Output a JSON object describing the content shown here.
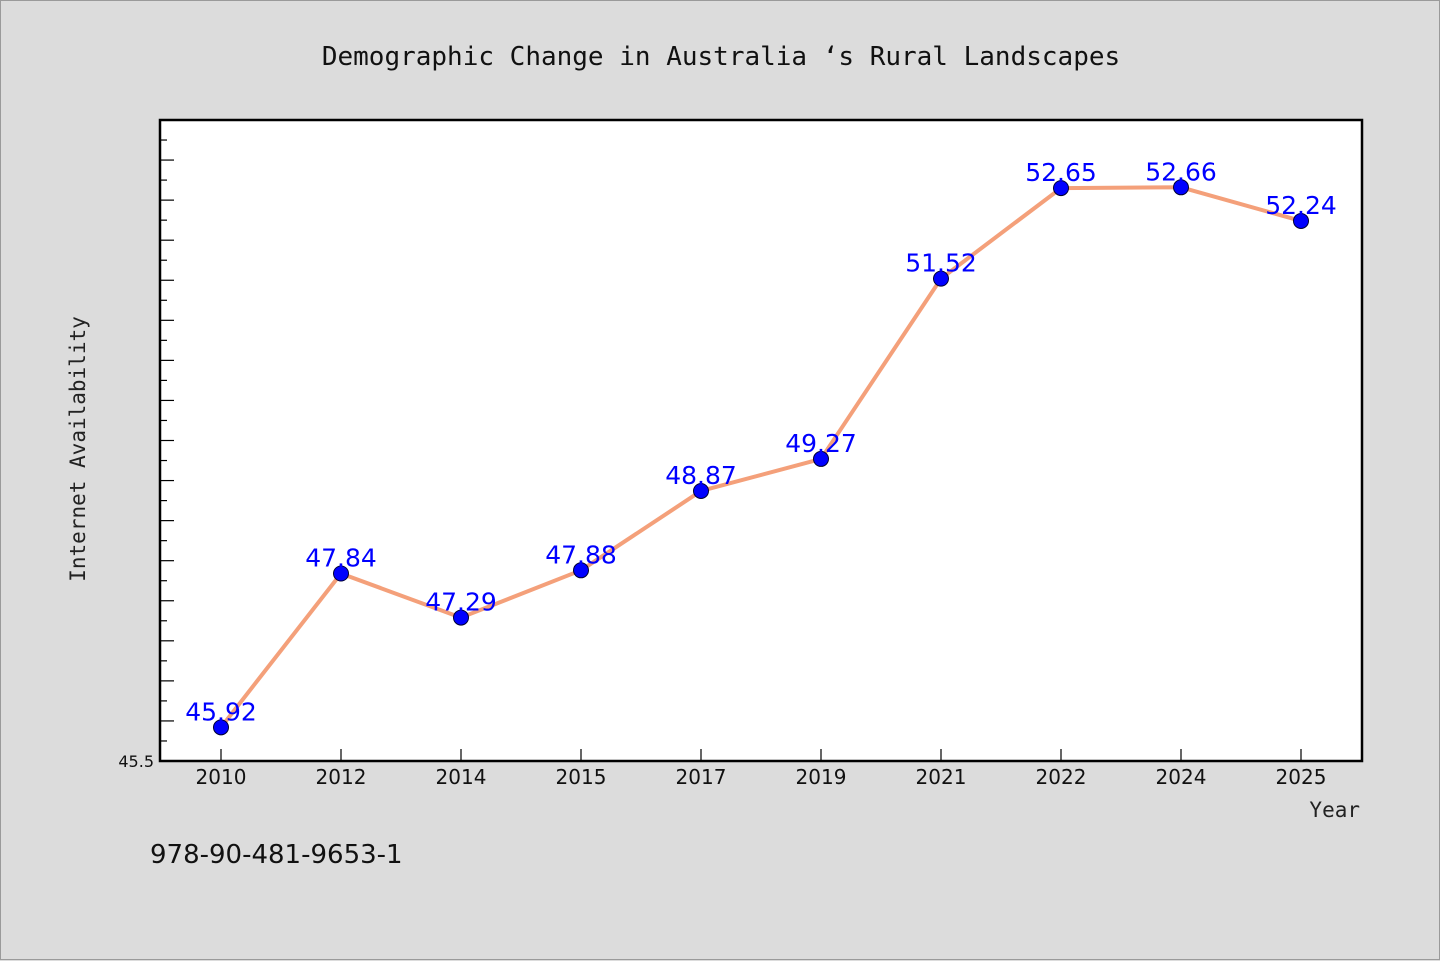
{
  "chart_data": {
    "type": "line",
    "title": "Demographic Change in Australia ‘s Rural Landscapes",
    "xlabel": "Year",
    "ylabel": "Internet Availability",
    "categories": [
      "2010",
      "2012",
      "2014",
      "2015",
      "2017",
      "2019",
      "2021",
      "2022",
      "2024",
      "2025"
    ],
    "series": [
      {
        "values": [
          45.92,
          47.84,
          47.29,
          47.88,
          48.87,
          49.27,
          51.52,
          52.65,
          52.66,
          52.24
        ],
        "labels": [
          "45.92",
          "47.84",
          "47.29",
          "47.88",
          "48.87",
          "49.27",
          "51.52",
          "52.65",
          "52.66",
          "52.24"
        ]
      }
    ],
    "ylim": [
      45.5,
      53.5
    ],
    "yticks_labeled": [
      "45.5"
    ],
    "grid": false,
    "line_color": "#f4a07a",
    "marker_color": "#0000ff",
    "label_color": "#0000ff"
  },
  "footer_text": "978-90-481-9653-1"
}
